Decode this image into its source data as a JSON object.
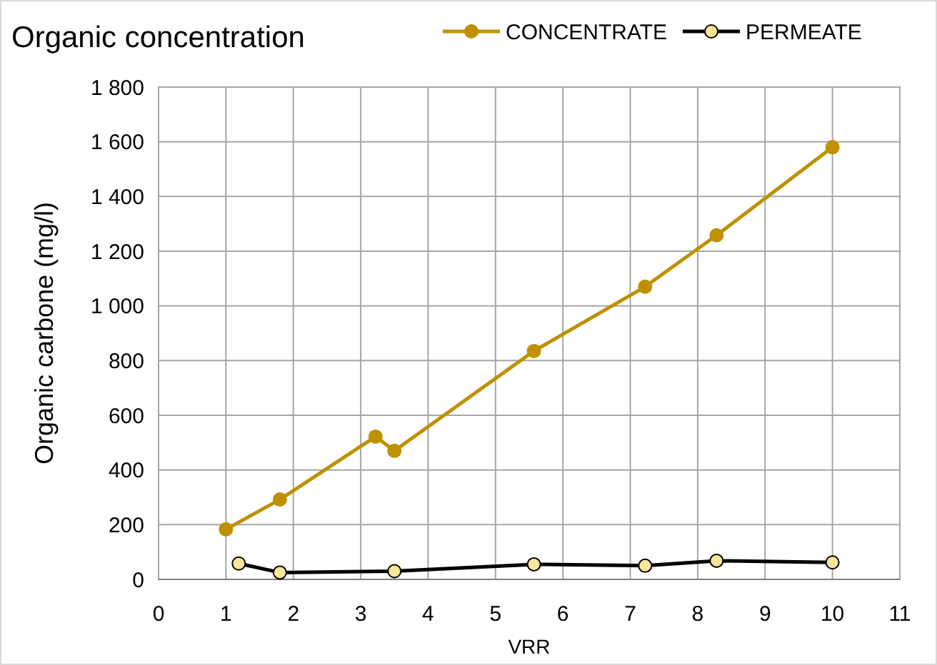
{
  "chart_data": {
    "type": "line",
    "title": "Organic concentration",
    "xlabel": "VRR",
    "ylabel": "Organic carbone (mg/l)",
    "xlim": [
      0,
      11
    ],
    "xticks": [
      0,
      1,
      2,
      3,
      4,
      5,
      6,
      7,
      8,
      9,
      10,
      11
    ],
    "ylim": [
      0,
      1800
    ],
    "yticks": [
      0,
      200,
      400,
      600,
      800,
      {
        "value": 1000,
        "label": "1 000"
      },
      {
        "value": 1200,
        "label": "1 200"
      },
      {
        "value": 1400,
        "label": "1 400"
      },
      {
        "value": 1600,
        "label": "1 600"
      },
      {
        "value": 1800,
        "label": "1 800"
      }
    ],
    "grid": true,
    "legend": "top right",
    "marker": "circle",
    "series": [
      {
        "name": "CONCENTRATE",
        "color": "#bf9000",
        "x": [
          1,
          1.8,
          3.22,
          3.5,
          5.57,
          7.22,
          8.28,
          10
        ],
        "values": [
          183,
          292,
          522,
          470,
          835,
          1070,
          1258,
          1580
        ]
      },
      {
        "name": "PERMEATE",
        "color": "#000000",
        "x": [
          1.19,
          1.8,
          3.5,
          5.57,
          7.22,
          8.28,
          10
        ],
        "values": [
          58,
          25,
          30,
          55,
          50,
          68,
          62
        ]
      }
    ]
  }
}
